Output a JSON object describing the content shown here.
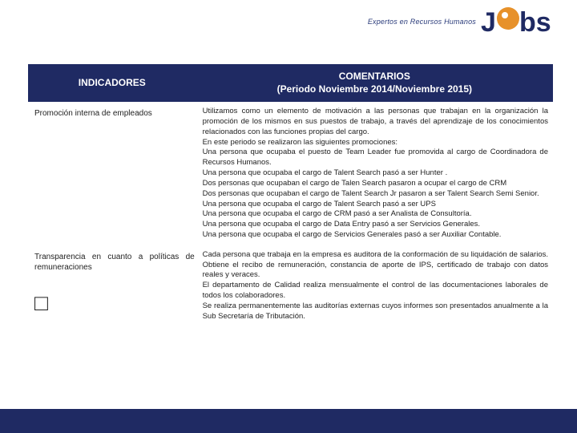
{
  "brand": {
    "tagline": "Expertos en Recursos Humanos",
    "name": "Jobs",
    "colors": {
      "navy": "#1f2a63",
      "orange": "#e7912a",
      "text_blue": "#2a3b7a"
    }
  },
  "table": {
    "headers": {
      "indicadores": "INDICADORES",
      "comentarios_l1": "COMENTARIOS",
      "comentarios_l2": "(Periodo Noviembre 2014/Noviembre 2015)"
    },
    "rows": [
      {
        "indicador": "Promoción interna de empleados",
        "comentario": "Utilizamos como un elemento de motivación a las personas que trabajan en la organización la promoción de los mismos en sus puestos de trabajo, a través del aprendizaje de los conocimientos relacionados con las funciones propias del cargo.\nEn este periodo se realizaron las siguientes promociones:\nUna persona que ocupaba el puesto de Team Leader fue promovida al cargo de Coordinadora de Recursos Humanos.\nUna persona que ocupaba el cargo de Talent Search pasó a ser Hunter .\nDos personas que ocupaban el cargo de Talen Search pasaron a ocupar el cargo de CRM\nDos personas que ocupaban el cargo de Talent Search Jr pasaron a ser Talent Search Semi Senior.\nUna persona que ocupaba el cargo de Talent Search pasó a ser UPS\nUna persona que ocupaba el cargo de CRM pasó a ser Analista de Consultoría.\nUna persona que ocupaba el cargo de Data Entry pasó a ser Servicios Generales.\nUna persona que ocupaba  el cargo de Servicios Generales pasó a ser Auxiliar Contable."
      },
      {
        "indicador": "Transparencia en cuanto a políticas de remuneraciones",
        "comentario": "Cada persona que trabaja en la empresa es auditora de la conformación de su liquidación de salarios. Obtiene el recibo de remuneración, constancia de aporte de IPS, certificado de trabajo con datos reales y veraces.\nEl departamento de Calidad realiza mensualmente el control de las documentaciones laborales de todos los colaboradores.\nSe realiza permanentemente las auditorías externas cuyos informes son presentados anualmente a la Sub Secretaría de Tributación."
      }
    ]
  }
}
